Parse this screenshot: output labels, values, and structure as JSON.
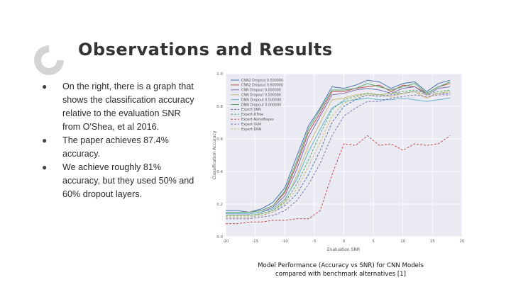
{
  "slide": {
    "title": "Observations and Results",
    "bullets": [
      "On the right, there is a graph that shows the classification accuracy relative to the evaluation SNR from O'Shea, et al 2016.",
      "The paper achieves 87.4% accuracy.",
      "We achieve roughly 81% accuracy, but they used 50% and 60% dropout layers."
    ],
    "caption_line1": "Model Performance (Accuracy vs SNR) for CNN Models",
    "caption_line2": "compared with benchmark alternatives [1]"
  },
  "chart_data": {
    "type": "line",
    "xlabel": "Evaluation SNR",
    "ylabel": "Classification Accuracy",
    "xlim": [
      -20,
      20
    ],
    "ylim": [
      0.0,
      1.0
    ],
    "xticks": [
      "-20",
      "-15",
      "-10",
      "-5",
      "0",
      "5",
      "10",
      "15",
      "20"
    ],
    "yticks": [
      "0.0",
      "0.2",
      "0.4",
      "0.6",
      "0.8",
      "1.0"
    ],
    "legend_position": "top-left",
    "x": [
      -20,
      -18,
      -16,
      -14,
      -12,
      -10,
      -8,
      -6,
      -4,
      -2,
      0,
      2,
      4,
      6,
      8,
      10,
      12,
      14,
      16,
      18
    ],
    "series": [
      {
        "name": "CNN2 Dropout 0.500000",
        "color": "#4c72b0",
        "dash": false,
        "values": [
          0.16,
          0.16,
          0.15,
          0.17,
          0.21,
          0.3,
          0.49,
          0.68,
          0.79,
          0.92,
          0.91,
          0.93,
          0.96,
          0.95,
          0.91,
          0.94,
          0.95,
          0.89,
          0.94,
          0.96
        ]
      },
      {
        "name": "CNN2 Dropout 0.600000",
        "color": "#c44e52",
        "dash": false,
        "values": [
          0.15,
          0.15,
          0.15,
          0.16,
          0.19,
          0.27,
          0.44,
          0.64,
          0.76,
          0.89,
          0.89,
          0.91,
          0.92,
          0.93,
          0.89,
          0.93,
          0.92,
          0.88,
          0.92,
          0.94
        ]
      },
      {
        "name": "CNN Dropout 0.000000",
        "color": "#8172b2",
        "dash": false,
        "values": [
          0.14,
          0.14,
          0.14,
          0.15,
          0.18,
          0.25,
          0.41,
          0.61,
          0.74,
          0.87,
          0.88,
          0.9,
          0.91,
          0.9,
          0.88,
          0.91,
          0.92,
          0.87,
          0.91,
          0.92
        ]
      },
      {
        "name": "CNN Dropout 0.500000",
        "color": "#ccb974",
        "dash": false,
        "values": [
          0.13,
          0.13,
          0.13,
          0.14,
          0.16,
          0.22,
          0.37,
          0.56,
          0.7,
          0.84,
          0.85,
          0.87,
          0.88,
          0.87,
          0.86,
          0.88,
          0.89,
          0.85,
          0.88,
          0.89
        ]
      },
      {
        "name": "DNN Dropout 0.500000",
        "color": "#64b5cd",
        "dash": false,
        "values": [
          0.14,
          0.14,
          0.14,
          0.15,
          0.17,
          0.23,
          0.35,
          0.52,
          0.66,
          0.79,
          0.83,
          0.84,
          0.85,
          0.84,
          0.84,
          0.85,
          0.84,
          0.83,
          0.84,
          0.85
        ]
      },
      {
        "name": "DNN Dropout 0.000000",
        "color": "#55a868",
        "dash": false,
        "values": [
          0.15,
          0.15,
          0.15,
          0.16,
          0.19,
          0.28,
          0.46,
          0.66,
          0.78,
          0.9,
          0.9,
          0.91,
          0.94,
          0.92,
          0.9,
          0.92,
          0.94,
          0.88,
          0.92,
          0.95
        ]
      },
      {
        "name": "Expert-SNN",
        "color": "#4c72b0",
        "dash": true,
        "values": [
          0.12,
          0.12,
          0.12,
          0.13,
          0.15,
          0.19,
          0.26,
          0.38,
          0.53,
          0.7,
          0.8,
          0.84,
          0.87,
          0.86,
          0.87,
          0.88,
          0.89,
          0.87,
          0.88,
          0.88
        ]
      },
      {
        "name": "Expert-DTree",
        "color": "#55a868",
        "dash": true,
        "values": [
          0.13,
          0.13,
          0.13,
          0.14,
          0.16,
          0.21,
          0.32,
          0.47,
          0.63,
          0.78,
          0.84,
          0.86,
          0.88,
          0.87,
          0.88,
          0.89,
          0.9,
          0.88,
          0.89,
          0.9
        ]
      },
      {
        "name": "Expert-NaiveBayes",
        "color": "#c44e52",
        "dash": true,
        "values": [
          0.08,
          0.08,
          0.09,
          0.09,
          0.1,
          0.1,
          0.11,
          0.11,
          0.16,
          0.38,
          0.57,
          0.56,
          0.62,
          0.56,
          0.57,
          0.53,
          0.57,
          0.56,
          0.57,
          0.62
        ]
      },
      {
        "name": "Expert-SVM",
        "color": "#8172b2",
        "dash": true,
        "values": [
          0.11,
          0.11,
          0.11,
          0.12,
          0.13,
          0.16,
          0.22,
          0.32,
          0.45,
          0.62,
          0.74,
          0.79,
          0.83,
          0.83,
          0.85,
          0.86,
          0.87,
          0.86,
          0.87,
          0.87
        ]
      },
      {
        "name": "Expert-DNN",
        "color": "#ccb974",
        "dash": true,
        "values": [
          0.12,
          0.12,
          0.12,
          0.13,
          0.15,
          0.2,
          0.29,
          0.43,
          0.58,
          0.74,
          0.82,
          0.85,
          0.87,
          0.87,
          0.88,
          0.88,
          0.89,
          0.87,
          0.88,
          0.89
        ]
      }
    ]
  }
}
